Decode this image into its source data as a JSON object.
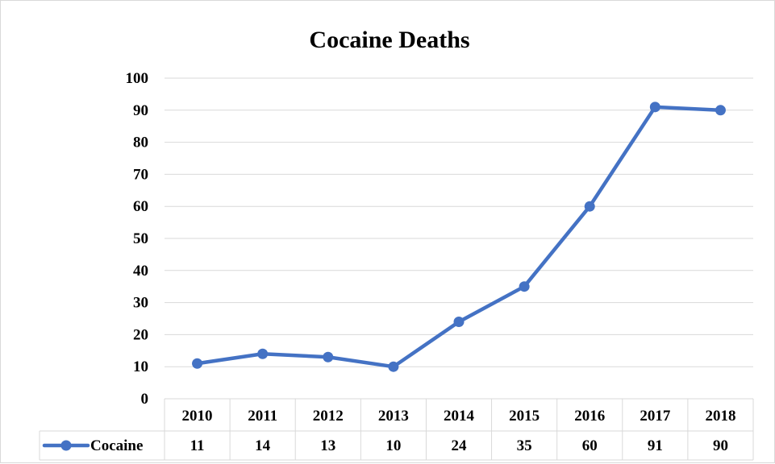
{
  "chart_data": {
    "type": "line",
    "title": "Cocaine Deaths",
    "xlabel": "",
    "ylabel": "",
    "categories": [
      "2010",
      "2011",
      "2012",
      "2013",
      "2014",
      "2015",
      "2016",
      "2017",
      "2018"
    ],
    "series": [
      {
        "name": "Cocaine",
        "values": [
          11,
          14,
          13,
          10,
          24,
          35,
          60,
          91,
          90
        ],
        "color": "#4472c4"
      }
    ],
    "ylim": [
      0,
      100
    ],
    "yticks": [
      "0",
      "10",
      "20",
      "30",
      "40",
      "50",
      "60",
      "70",
      "80",
      "90",
      "100"
    ],
    "grid": true,
    "data_table": true,
    "gridline_color": "#d9d9d9"
  }
}
